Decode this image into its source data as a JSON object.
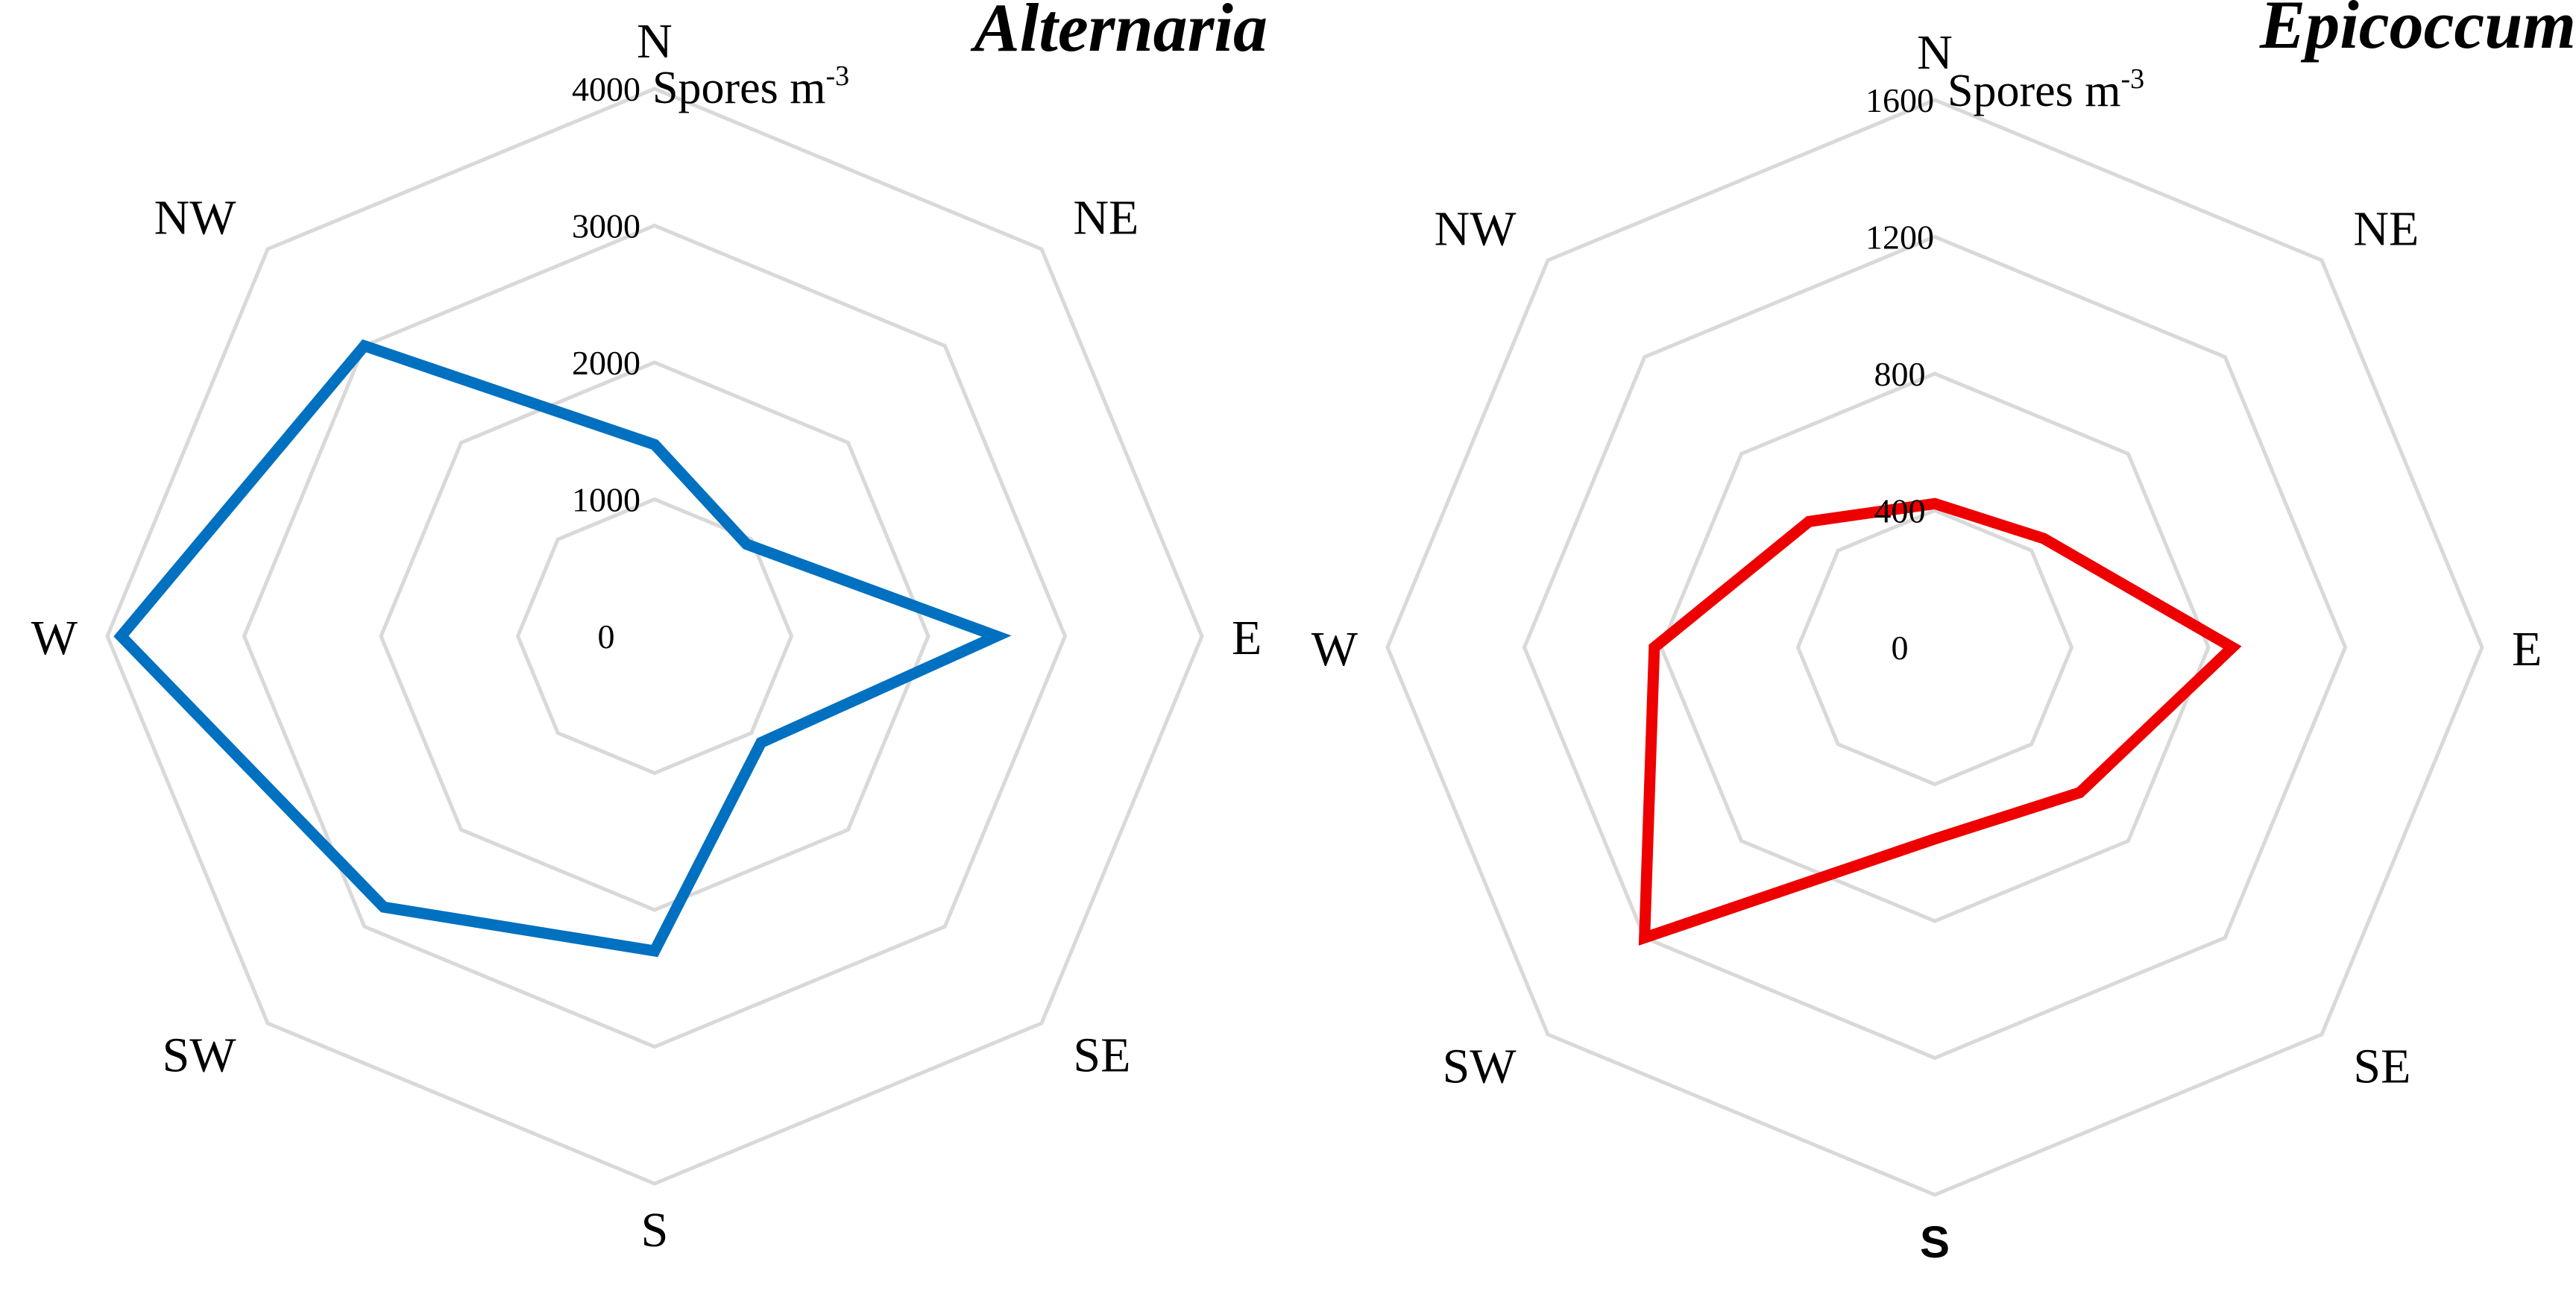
{
  "chart_data": [
    {
      "type": "radar",
      "title": "Alternaria",
      "unit_label": "Spores m",
      "unit_superscript": "-3",
      "directions": [
        "N",
        "NE",
        "E",
        "SE",
        "S",
        "SW",
        "W",
        "NW"
      ],
      "bold_directions": [],
      "ticks": [
        "0",
        "1000",
        "2000",
        "3000",
        "4000"
      ],
      "rmax": 4000,
      "series": [
        {
          "color": "#0070c0",
          "values": [
            1400,
            950,
            2500,
            1100,
            2300,
            2800,
            3900,
            3000
          ]
        }
      ],
      "grid": true,
      "legend": "none"
    },
    {
      "type": "radar",
      "title": "Epicoccum",
      "unit_label": "Spores m",
      "unit_superscript": "-3",
      "directions": [
        "N",
        "NE",
        "E",
        "SE",
        "S",
        "SW",
        "W",
        "NW"
      ],
      "bold_directions": [
        "S"
      ],
      "ticks": [
        "0",
        "400",
        "800",
        "1200",
        "1600"
      ],
      "rmax": 1600,
      "series": [
        {
          "color": "#ee0000",
          "values": [
            420,
            450,
            870,
            600,
            560,
            1200,
            820,
            520
          ]
        }
      ],
      "grid": true,
      "legend": "none"
    }
  ]
}
